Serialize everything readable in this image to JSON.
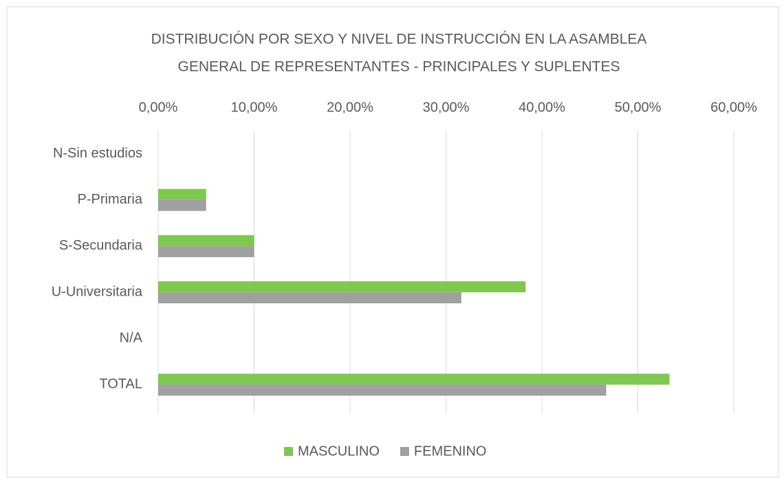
{
  "chart_data": {
    "type": "hbar",
    "title": [
      "DISTRIBUCIÓN POR SEXO Y NIVEL DE INSTRUCCIÓN EN LA ASAMBLEA",
      "GENERAL  DE REPRESENTANTES  - PRINCIPALES Y SUPLENTES"
    ],
    "categories": [
      "N-Sin estudios",
      "P-Primaria",
      "S-Secundaria",
      "U-Universitaria",
      "N/A",
      "TOTAL"
    ],
    "series": [
      {
        "name": "MASCULINO",
        "color": "#7ec850",
        "values": [
          0,
          5,
          10,
          38.3,
          0,
          53.3
        ]
      },
      {
        "name": "FEMENINO",
        "color": "#a0a0a0",
        "values": [
          0,
          5,
          10,
          31.6,
          0,
          46.7
        ]
      }
    ],
    "xlim": [
      0,
      60
    ],
    "xticks": [
      {
        "value": 0,
        "label": "0,00%"
      },
      {
        "value": 10,
        "label": "10,00%"
      },
      {
        "value": 20,
        "label": "20,00%"
      },
      {
        "value": 30,
        "label": "30,00%"
      },
      {
        "value": 40,
        "label": "40,00%"
      },
      {
        "value": 50,
        "label": "50,00%"
      },
      {
        "value": 60,
        "label": "60,00%"
      }
    ],
    "grid": true,
    "legend": "bottom"
  }
}
